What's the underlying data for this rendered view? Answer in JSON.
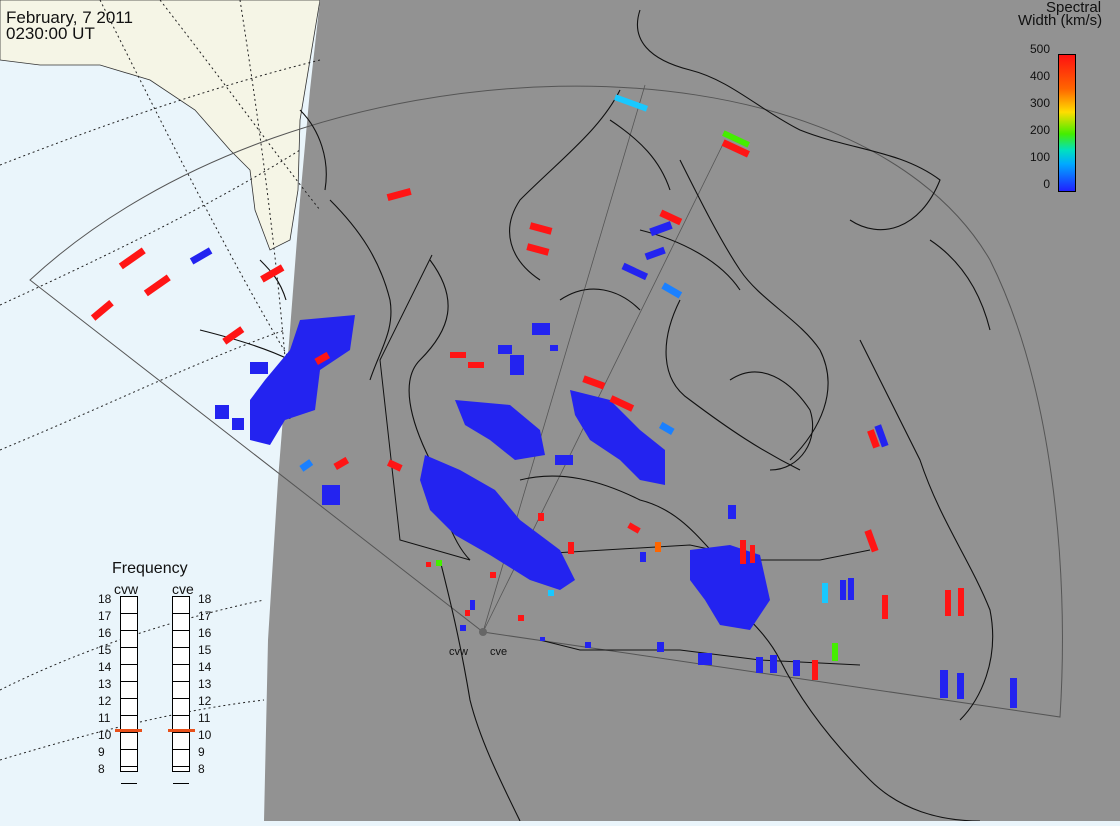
{
  "header": {
    "date": "February, 7 2011",
    "time": "0230:00 UT"
  },
  "legend": {
    "title_line1": "Spectral",
    "title_line2": "Width (km/s)",
    "ticks": [
      "500",
      "400",
      "300",
      "200",
      "100",
      "0"
    ],
    "colors": {
      "low": "#2020ff",
      "mid_low": "#00e0c0",
      "mid": "#44ee00",
      "mid_high": "#ffdd00",
      "high": "#ff1111"
    }
  },
  "frequency_panel": {
    "title": "Frequency",
    "radars": [
      {
        "name": "cvw",
        "value_mhz": 10.7
      },
      {
        "name": "cve",
        "value_mhz": 10.7
      }
    ],
    "scale": [
      "18",
      "17",
      "16",
      "15",
      "14",
      "13",
      "12",
      "11",
      "10",
      "9",
      "8"
    ]
  },
  "radar_sites": [
    {
      "name": "cvw"
    },
    {
      "name": "cve"
    }
  ],
  "map_colors": {
    "ocean": "#eaf5fb",
    "land": "#f5f5e6",
    "night": "#929292"
  }
}
